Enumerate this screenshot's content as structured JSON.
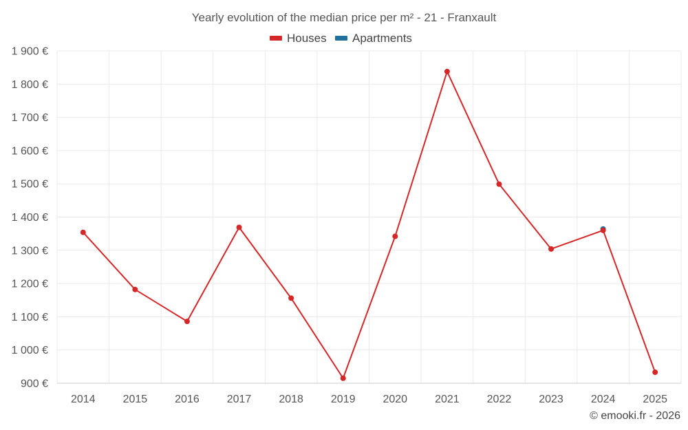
{
  "chart_data": {
    "type": "line",
    "title": "Yearly evolution of the median price per m² - 21 - Franxault",
    "xlabel": "",
    "ylabel": "",
    "categories": [
      "2014",
      "2015",
      "2016",
      "2017",
      "2018",
      "2019",
      "2020",
      "2021",
      "2022",
      "2023",
      "2024",
      "2025"
    ],
    "ylim": [
      900,
      1900
    ],
    "yticks": [
      900,
      1000,
      1100,
      1200,
      1300,
      1400,
      1500,
      1600,
      1700,
      1800,
      1900
    ],
    "ytick_labels": [
      "900 €",
      "1 000 €",
      "1 100 €",
      "1 200 €",
      "1 300 €",
      "1 400 €",
      "1 500 €",
      "1 600 €",
      "1 700 €",
      "1 800 €",
      "1 900 €"
    ],
    "grid": true,
    "legend_position": "top-center",
    "series": [
      {
        "name": "Houses",
        "color": "#d62728",
        "values": [
          1354,
          1182,
          1086,
          1369,
          1156,
          915,
          1342,
          1838,
          1499,
          1304,
          1360,
          933
        ]
      },
      {
        "name": "Apartments",
        "color": "#1f6f9f",
        "values": [
          null,
          null,
          null,
          null,
          null,
          null,
          null,
          null,
          null,
          null,
          1364,
          null
        ]
      }
    ]
  },
  "credit": "© emooki.fr - 2026"
}
